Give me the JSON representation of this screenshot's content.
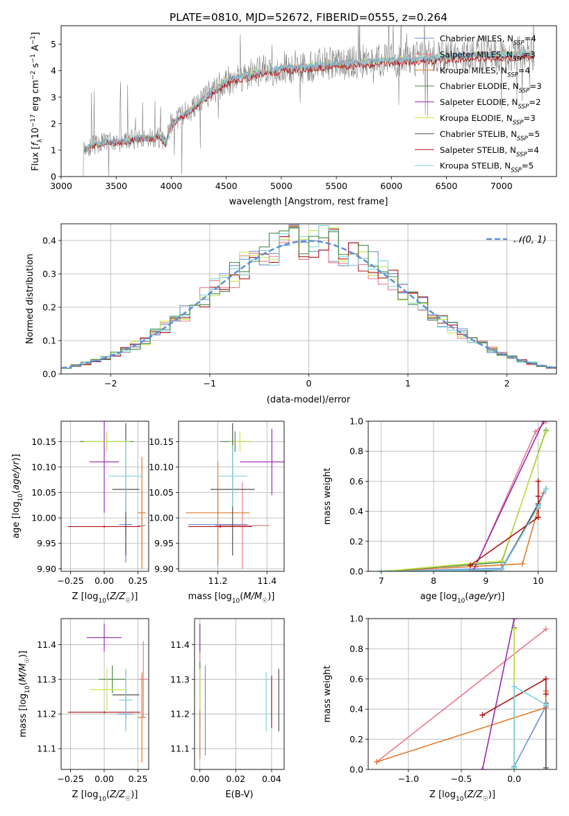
{
  "figure": {
    "title": "PLATE=0810, MJD=52672, FIBERID=0555, z=0.264"
  },
  "colors": {
    "Chabrier MILES": "#6c8fd8",
    "Salpeter MILES": "#e8798a",
    "Kroupa MILES": "#e07b2c",
    "Chabrier ELODIE": "#4a8b4a",
    "Salpeter ELODIE": "#9b27b0",
    "Kroupa ELODIE": "#c8e64a",
    "Chabrier STELIB": "#505050",
    "Salpeter STELIB": "#b01010",
    "Kroupa STELIB": "#7fd4dc",
    "normal_fit": "#5b8fd8",
    "data": "#808080"
  },
  "chart_data": [
    {
      "id": "spectrum",
      "type": "line",
      "title": "PLATE=0810, MJD=52672, FIBERID=0555, z=0.264",
      "xlabel": "wavelength [Angstrom, rest frame]",
      "ylabel": "Flux [f_λ 10⁻¹⁷ erg cm⁻² s⁻¹ A⁻¹]",
      "xlim": [
        3000,
        7500
      ],
      "ylim": [
        0,
        5.7
      ],
      "xticks": [
        3000,
        3500,
        4000,
        4500,
        5000,
        5500,
        6000,
        6500,
        7000
      ],
      "yticks": [
        0,
        1,
        2,
        3,
        4,
        5
      ],
      "grid": false,
      "legend_position": "top-right",
      "legend": [
        {
          "label": "Chabrier MILES, N_SSP=4",
          "main": "Chabrier MILES, N",
          "sub": "SSP",
          "tail": "=4"
        },
        {
          "label": "Salpeter MILES, N_SSP=3",
          "main": "Salpeter MILES, N",
          "sub": "SSP",
          "tail": "=3"
        },
        {
          "label": "Kroupa MILES, N_SSP=4",
          "main": "Kroupa MILES, N",
          "sub": "SSP",
          "tail": "=4"
        },
        {
          "label": "Chabrier ELODIE, N_SSP=3",
          "main": "Chabrier ELODIE, N",
          "sub": "SSP",
          "tail": "=3"
        },
        {
          "label": "Salpeter ELODIE, N_SSP=2",
          "main": "Salpeter ELODIE, N",
          "sub": "SSP",
          "tail": "=2"
        },
        {
          "label": "Kroupa ELODIE, N_SSP=3",
          "main": "Kroupa ELODIE, N",
          "sub": "SSP",
          "tail": "=3"
        },
        {
          "label": "Chabrier STELIB, N_SSP=5",
          "main": "Chabrier STELIB, N",
          "sub": "SSP",
          "tail": "=5"
        },
        {
          "label": "Salpeter STELIB, N_SSP=4",
          "main": "Salpeter STELIB, N",
          "sub": "SSP",
          "tail": "=4"
        },
        {
          "label": "Kroupa STELIB, N_SSP=5",
          "main": "Kroupa STELIB, N",
          "sub": "SSP",
          "tail": "=5"
        }
      ],
      "model_continuum": {
        "x": [
          3200,
          3300,
          3400,
          3500,
          3600,
          3700,
          3800,
          3900,
          3950,
          4000,
          4100,
          4200,
          4300,
          4400,
          4500,
          4600,
          4700,
          4800,
          4900,
          5000,
          5200,
          5400,
          5600,
          5800,
          6000,
          6200,
          6400,
          6600,
          6800,
          7000,
          7300
        ],
        "y": [
          1.05,
          1.2,
          1.3,
          1.3,
          1.35,
          1.45,
          1.45,
          1.5,
          1.25,
          2.0,
          2.3,
          2.6,
          2.95,
          3.3,
          3.6,
          3.75,
          3.85,
          3.95,
          4.0,
          4.1,
          4.15,
          4.25,
          4.3,
          4.35,
          4.4,
          4.45,
          4.5,
          4.55,
          4.6,
          4.6,
          4.65
        ]
      },
      "data_line_range": [
        3200,
        7300
      ]
    },
    {
      "id": "residuals",
      "type": "histogram",
      "xlabel": "(data-model)/error",
      "ylabel": "Normed distribution",
      "xlim": [
        -2.5,
        2.5
      ],
      "ylim": [
        0,
        0.45
      ],
      "xticks": [
        -2,
        -1,
        0,
        1,
        2
      ],
      "yticks": [
        0.0,
        0.1,
        0.2,
        0.3,
        0.4
      ],
      "grid": true,
      "legend_position": "top-right",
      "legend": [
        {
          "label": "𝒩(0, 1)"
        }
      ],
      "reference_curve": "standard normal density",
      "bin_width": 0.1
    },
    {
      "id": "age-vs-Z",
      "type": "errorbar",
      "xlabel": "Z [log10(Z/Z☉)]",
      "ylabel": "age [log10(age/yr)]",
      "xlim": [
        -0.32,
        0.33
      ],
      "ylim": [
        9.895,
        10.19
      ],
      "xticks": [
        -0.25,
        0.0,
        0.25
      ],
      "yticks": [
        9.9,
        9.95,
        10.0,
        10.05,
        10.1,
        10.15
      ],
      "grid": true,
      "points": [
        {
          "model": "Chabrier MILES",
          "x": 0.16,
          "xerr": 0.05,
          "y": 9.987,
          "yerr": 0.075
        },
        {
          "model": "Salpeter MILES",
          "x": 0.28,
          "xerr": 0.03,
          "y": 9.985,
          "yerr": 0.07
        },
        {
          "model": "Kroupa MILES",
          "x": 0.28,
          "xerr": 0.03,
          "y": 10.01,
          "yerr": 0.11
        },
        {
          "model": "Chabrier ELODIE",
          "x": 0.02,
          "xerr": 0.2,
          "y": 10.15,
          "yerr": 0.02
        },
        {
          "model": "Salpeter ELODIE",
          "x": 0.0,
          "xerr": 0.11,
          "y": 10.11,
          "yerr": 0.1
        },
        {
          "model": "Kroupa ELODIE",
          "x": 0.02,
          "xerr": 0.17,
          "y": 10.15,
          "yerr": 0.02
        },
        {
          "model": "Chabrier STELIB",
          "x": 0.16,
          "xerr": 0.1,
          "y": 10.056,
          "yerr": 0.13
        },
        {
          "model": "Salpeter STELIB",
          "x": 0.0,
          "xerr": 0.27,
          "y": 9.983,
          "yerr": 0.002
        },
        {
          "model": "Kroupa STELIB",
          "x": 0.16,
          "xerr": 0.13,
          "y": 10.082,
          "yerr": 0.07
        }
      ]
    },
    {
      "id": "age-vs-mass",
      "type": "errorbar",
      "xlabel": "mass [log10(M/M☉)]",
      "ylabel": "",
      "xlim": [
        11.04,
        11.47
      ],
      "ylim": [
        9.895,
        10.19
      ],
      "xticks": [
        11.2,
        11.4
      ],
      "yticks": [
        9.9,
        9.95,
        10.0,
        10.05,
        10.1,
        10.15
      ],
      "grid": true,
      "points": [
        {
          "model": "Chabrier MILES",
          "x": 11.2,
          "xerr": 0.12,
          "y": 9.987,
          "yerr": 0.08
        },
        {
          "model": "Salpeter MILES",
          "x": 11.3,
          "xerr": 0.11,
          "y": 9.985,
          "yerr": 0.085
        },
        {
          "model": "Kroupa MILES",
          "x": 11.2,
          "xerr": 0.13,
          "y": 10.01,
          "yerr": 0.1
        },
        {
          "model": "Chabrier ELODIE",
          "x": 11.27,
          "xerr": 0.06,
          "y": 10.15,
          "yerr": 0.02
        },
        {
          "model": "Salpeter ELODIE",
          "x": 11.42,
          "xerr": 0.13,
          "y": 10.11,
          "yerr": 0.065
        },
        {
          "model": "Kroupa ELODIE",
          "x": 11.29,
          "xerr": 0.04,
          "y": 10.15,
          "yerr": 0.02
        },
        {
          "model": "Chabrier STELIB",
          "x": 11.26,
          "xerr": 0.09,
          "y": 10.056,
          "yerr": 0.13
        },
        {
          "model": "Salpeter STELIB",
          "x": 11.21,
          "xerr": 0.13,
          "y": 9.983,
          "yerr": 0.003
        },
        {
          "model": "Kroupa STELIB",
          "x": 11.26,
          "xerr": 0.06,
          "y": 10.082,
          "yerr": 0.06
        }
      ]
    },
    {
      "id": "massweight-vs-age",
      "type": "line",
      "xlabel": "age [log10(age/yr)]",
      "ylabel": "mass weight",
      "xlim": [
        6.75,
        10.35
      ],
      "ylim": [
        0,
        1
      ],
      "xticks": [
        7,
        8,
        9,
        10
      ],
      "yticks": [
        0.0,
        0.2,
        0.4,
        0.6,
        0.8,
        1.0
      ],
      "grid": true,
      "series": [
        {
          "model": "Chabrier MILES",
          "x": [
            7.0,
            9.3,
            10.0,
            10.15
          ],
          "y": [
            0.0,
            0.02,
            0.44,
            0.55
          ]
        },
        {
          "model": "Salpeter MILES",
          "x": [
            8.8,
            9.95,
            10.15
          ],
          "y": [
            0.03,
            0.93,
            1.0
          ]
        },
        {
          "model": "Kroupa MILES",
          "x": [
            7.0,
            9.7,
            10.0,
            10.1
          ],
          "y": [
            0.0,
            0.05,
            0.42,
            0.52
          ]
        },
        {
          "model": "Chabrier ELODIE",
          "x": [
            7.0,
            9.3,
            10.15
          ],
          "y": [
            0.0,
            0.06,
            0.94
          ]
        },
        {
          "model": "Salpeter ELODIE",
          "x": [
            8.75,
            10.1
          ],
          "y": [
            0.0,
            1.0
          ]
        },
        {
          "model": "Kroupa ELODIE",
          "x": [
            7.0,
            9.3,
            10.15
          ],
          "y": [
            0.0,
            0.07,
            0.93
          ]
        },
        {
          "model": "Chabrier STELIB",
          "x": [
            7.0,
            8.7,
            9.3,
            10.0,
            10.15
          ],
          "y": [
            0.0,
            0.0,
            0.01,
            0.45,
            0.55
          ]
        },
        {
          "model": "Salpeter STELIB",
          "x": [
            8.7,
            10.0,
            10.0,
            10.0
          ],
          "y": [
            0.04,
            0.36,
            0.6,
            0.5
          ]
        },
        {
          "model": "Kroupa STELIB",
          "x": [
            7.0,
            9.3,
            10.0,
            10.15
          ],
          "y": [
            0.0,
            0.01,
            0.43,
            0.55
          ]
        }
      ]
    },
    {
      "id": "mass-vs-Z",
      "type": "errorbar",
      "xlabel": "Z [log10(Z/Z☉)]",
      "ylabel": "mass [log10(M/M☉)]",
      "xlim": [
        -0.32,
        0.33
      ],
      "ylim": [
        11.04,
        11.475
      ],
      "xticks": [
        -0.25,
        0.0,
        0.25
      ],
      "yticks": [
        11.1,
        11.2,
        11.3,
        11.4
      ],
      "grid": true,
      "points": [
        {
          "model": "Chabrier MILES",
          "x": 0.16,
          "xerr": 0.06,
          "y": 11.2,
          "yerr": 0.05
        },
        {
          "model": "Salpeter MILES",
          "x": 0.29,
          "xerr": 0.03,
          "y": 11.3,
          "yerr": 0.11
        },
        {
          "model": "Kroupa MILES",
          "x": 0.28,
          "xerr": 0.03,
          "y": 11.19,
          "yerr": 0.13
        },
        {
          "model": "Chabrier ELODIE",
          "x": 0.06,
          "xerr": 0.1,
          "y": 11.3,
          "yerr": 0.04
        },
        {
          "model": "Salpeter ELODIE",
          "x": 0.0,
          "xerr": 0.13,
          "y": 11.42,
          "yerr": 0.04
        },
        {
          "model": "Kroupa ELODIE",
          "x": 0.02,
          "xerr": 0.13,
          "y": 11.27,
          "yerr": 0.06
        },
        {
          "model": "Chabrier STELIB",
          "x": 0.16,
          "xerr": 0.1,
          "y": 11.255,
          "yerr": 0.075
        },
        {
          "model": "Salpeter STELIB",
          "x": 0.0,
          "xerr": 0.27,
          "y": 11.205,
          "yerr": 0.003
        },
        {
          "model": "Kroupa STELIB",
          "x": 0.16,
          "xerr": 0.05,
          "y": 11.24,
          "yerr": 0.09
        }
      ]
    },
    {
      "id": "mass-vs-EBV",
      "type": "errorbar",
      "xlabel": "E(B-V)",
      "ylabel": "",
      "xlim": [
        -0.003,
        0.047
      ],
      "ylim": [
        11.04,
        11.475
      ],
      "xticks": [
        0.0,
        0.02,
        0.04
      ],
      "yticks": [
        11.1,
        11.2,
        11.3,
        11.4
      ],
      "grid": true,
      "points": [
        {
          "model": "Chabrier MILES",
          "x": 0.003,
          "xerr": 0,
          "y": 11.21,
          "yerr": 0.13
        },
        {
          "model": "Salpeter MILES",
          "x": 0.0,
          "xerr": 0,
          "y": 11.28,
          "yerr": 0.12
        },
        {
          "model": "Kroupa MILES",
          "x": 0.0,
          "xerr": 0,
          "y": 11.19,
          "yerr": 0.12
        },
        {
          "model": "Chabrier ELODIE",
          "x": 0.0,
          "xerr": 0,
          "y": 11.3,
          "yerr": 0.05
        },
        {
          "model": "Salpeter ELODIE",
          "x": 0.0,
          "xerr": 0,
          "y": 11.42,
          "yerr": 0.04
        },
        {
          "model": "Kroupa ELODIE",
          "x": 0.0,
          "xerr": 0,
          "y": 11.27,
          "yerr": 0.06
        },
        {
          "model": "Chabrier STELIB",
          "x": 0.044,
          "xerr": 0,
          "y": 11.24,
          "yerr": 0.09
        },
        {
          "model": "Salpeter STELIB",
          "x": 0.04,
          "xerr": 0,
          "y": 11.235,
          "yerr": 0.075
        },
        {
          "model": "Kroupa STELIB",
          "x": 0.037,
          "xerr": 0,
          "y": 11.235,
          "yerr": 0.085
        }
      ]
    },
    {
      "id": "massweight-vs-Z",
      "type": "line",
      "xlabel": "Z [log10(Z/Z☉)]",
      "ylabel": "mass weight",
      "xlim": [
        -1.38,
        0.4
      ],
      "ylim": [
        0,
        1
      ],
      "xticks": [
        -1.0,
        -0.5,
        0.0
      ],
      "yticks": [
        0.0,
        0.2,
        0.4,
        0.6,
        0.8,
        1.0
      ],
      "grid": true,
      "series": [
        {
          "model": "Chabrier MILES",
          "x": [
            0.0,
            0.3
          ],
          "y": [
            0.02,
            0.42
          ]
        },
        {
          "model": "Salpeter MILES",
          "x": [
            -1.3,
            0.3
          ],
          "y": [
            0.05,
            0.93
          ]
        },
        {
          "model": "Kroupa MILES",
          "x": [
            -1.3,
            0.3,
            0.3
          ],
          "y": [
            0.05,
            0.41,
            0.52
          ]
        },
        {
          "model": "Chabrier ELODIE",
          "x": [
            0.0,
            0.0
          ],
          "y": [
            0.01,
            0.94
          ]
        },
        {
          "model": "Salpeter ELODIE",
          "x": [
            -0.3,
            0.0
          ],
          "y": [
            0.0,
            1.0
          ]
        },
        {
          "model": "Kroupa ELODIE",
          "x": [
            0.0,
            0.0
          ],
          "y": [
            0.01,
            0.93
          ]
        },
        {
          "model": "Chabrier STELIB",
          "x": [
            0.3,
            0.3
          ],
          "y": [
            0.01,
            0.44
          ]
        },
        {
          "model": "Salpeter STELIB",
          "x": [
            -0.3,
            0.3,
            0.3
          ],
          "y": [
            0.36,
            0.6,
            0.5
          ]
        },
        {
          "model": "Kroupa STELIB",
          "x": [
            0.0,
            0.0,
            0.3
          ],
          "y": [
            0.01,
            0.55,
            0.43
          ]
        }
      ]
    }
  ]
}
